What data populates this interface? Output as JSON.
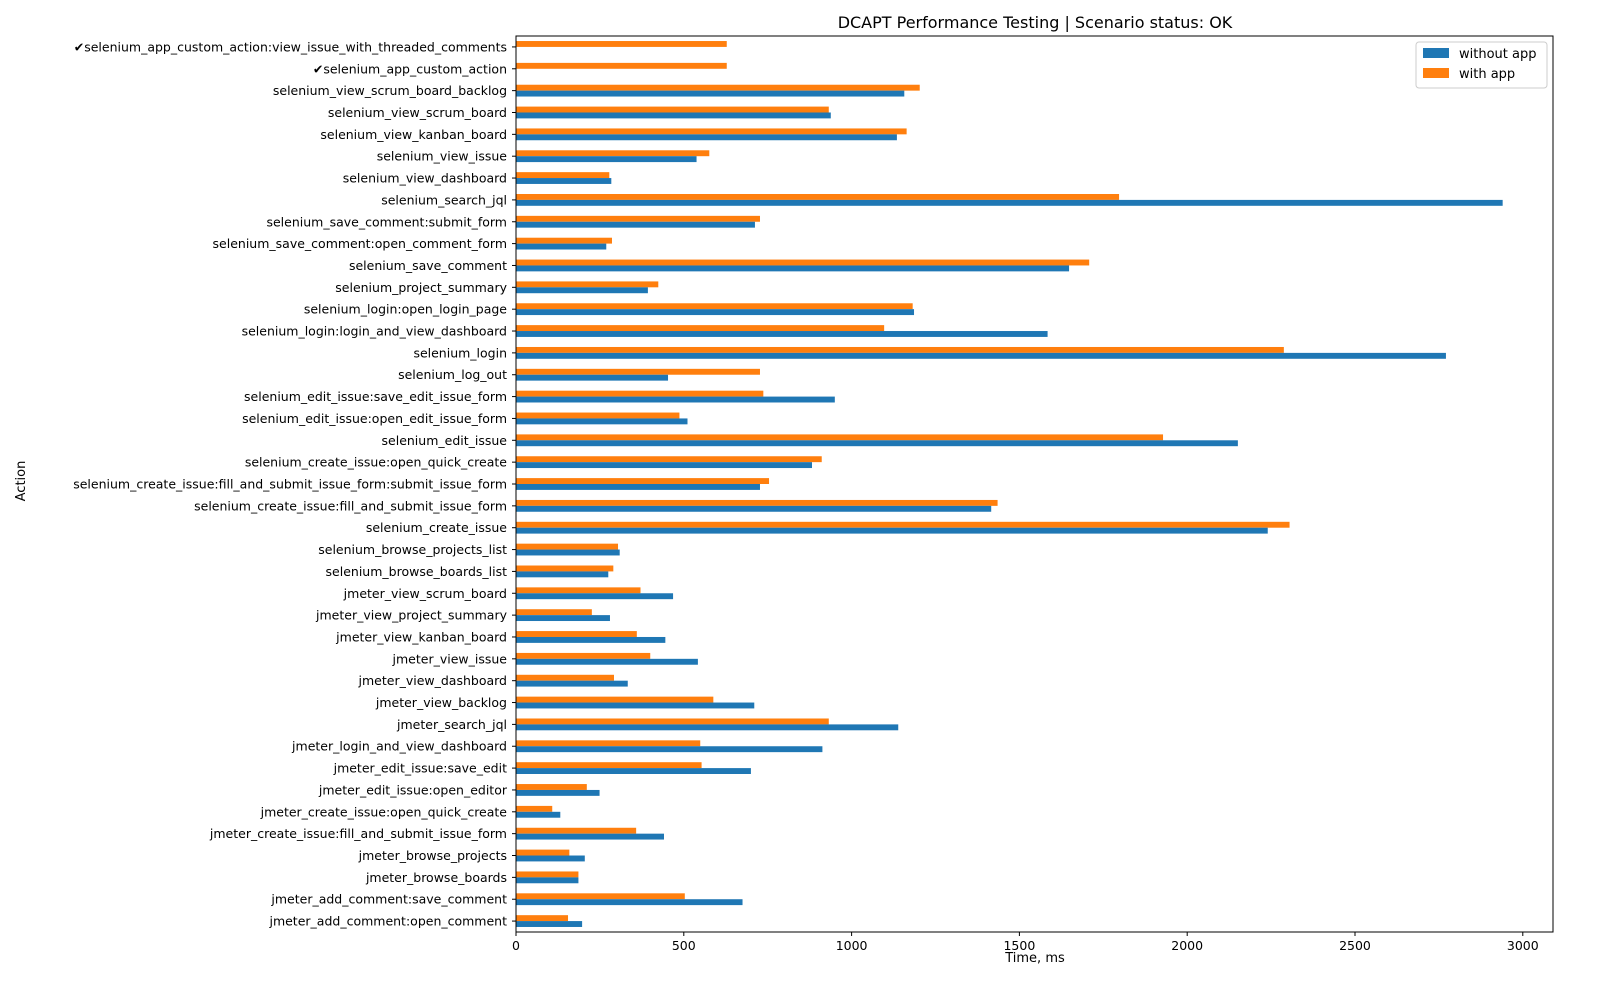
{
  "chart_data": {
    "type": "bar",
    "orientation": "horizontal",
    "title": "DCAPT Performance Testing | Scenario status: OK",
    "xlabel": "Time, ms",
    "ylabel": "Action",
    "xlim": [
      0,
      3090
    ],
    "xticks": [
      0,
      500,
      1000,
      1500,
      2000,
      2500,
      3000
    ],
    "grid": false,
    "legend_position": "top-right",
    "categories": [
      "✔selenium_app_custom_action:view_issue_with_threaded_comments",
      "✔selenium_app_custom_action",
      "selenium_view_scrum_board_backlog",
      "selenium_view_scrum_board",
      "selenium_view_kanban_board",
      "selenium_view_issue",
      "selenium_view_dashboard",
      "selenium_search_jql",
      "selenium_save_comment:submit_form",
      "selenium_save_comment:open_comment_form",
      "selenium_save_comment",
      "selenium_project_summary",
      "selenium_login:open_login_page",
      "selenium_login:login_and_view_dashboard",
      "selenium_login",
      "selenium_log_out",
      "selenium_edit_issue:save_edit_issue_form",
      "selenium_edit_issue:open_edit_issue_form",
      "selenium_edit_issue",
      "selenium_create_issue:open_quick_create",
      "selenium_create_issue:fill_and_submit_issue_form:submit_issue_form",
      "selenium_create_issue:fill_and_submit_issue_form",
      "selenium_create_issue",
      "selenium_browse_projects_list",
      "selenium_browse_boards_list",
      "jmeter_view_scrum_board",
      "jmeter_view_project_summary",
      "jmeter_view_kanban_board",
      "jmeter_view_issue",
      "jmeter_view_dashboard",
      "jmeter_view_backlog",
      "jmeter_search_jql",
      "jmeter_login_and_view_dashboard",
      "jmeter_edit_issue:save_edit",
      "jmeter_edit_issue:open_editor",
      "jmeter_create_issue:open_quick_create",
      "jmeter_create_issue:fill_and_submit_issue_form",
      "jmeter_browse_projects",
      "jmeter_browse_boards",
      "jmeter_add_comment:save_comment",
      "jmeter_add_comment:open_comment"
    ],
    "series": [
      {
        "name": "without app",
        "color": "#1f77b4",
        "values": [
          0,
          0,
          1157,
          938,
          1135,
          538,
          284,
          2940,
          712,
          269,
          1648,
          393,
          1186,
          1584,
          2771,
          453,
          950,
          511,
          2151,
          882,
          727,
          1416,
          2240,
          309,
          275,
          468,
          280,
          445,
          542,
          333,
          710,
          1139,
          913,
          700,
          249,
          132,
          441,
          205,
          186,
          675,
          197
        ]
      },
      {
        "name": "with app",
        "color": "#ff7f0e",
        "values": [
          628,
          628,
          1203,
          932,
          1164,
          576,
          278,
          1797,
          727,
          286,
          1708,
          424,
          1182,
          1097,
          2288,
          727,
          737,
          487,
          1928,
          911,
          754,
          1435,
          2305,
          304,
          290,
          371,
          226,
          360,
          400,
          292,
          588,
          932,
          549,
          553,
          211,
          108,
          358,
          159,
          186,
          503,
          155
        ]
      }
    ]
  }
}
